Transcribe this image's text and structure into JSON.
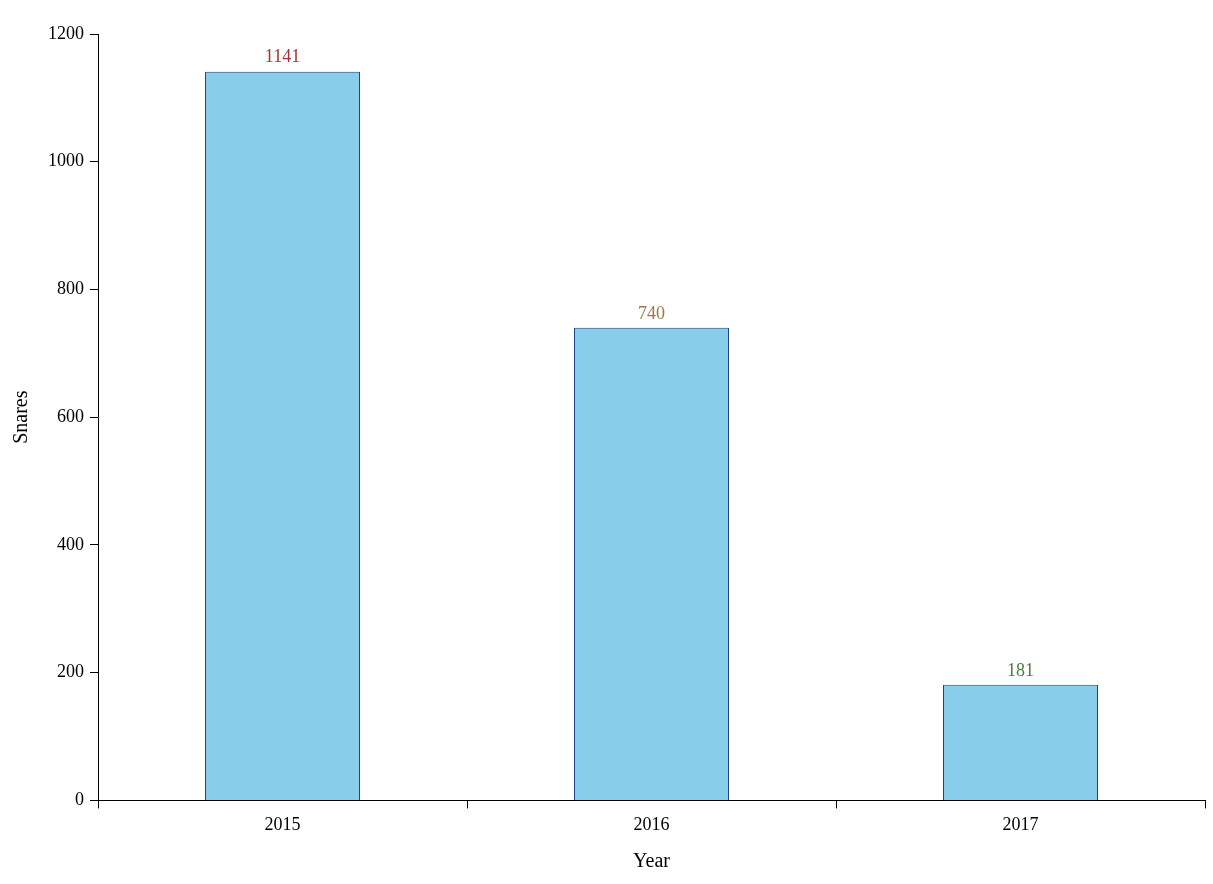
{
  "chart_data": {
    "type": "bar",
    "x_label": "Year",
    "y_label": "Snares",
    "categories": [
      "2015",
      "2016",
      "2017"
    ],
    "values": [
      1141,
      740,
      181
    ],
    "color": "#87ceeb",
    "ylim": [
      0,
      1200
    ],
    "yticks": [
      0,
      200,
      400,
      600,
      800,
      1000,
      1200
    ],
    "grid": false,
    "data_labels": true
  }
}
